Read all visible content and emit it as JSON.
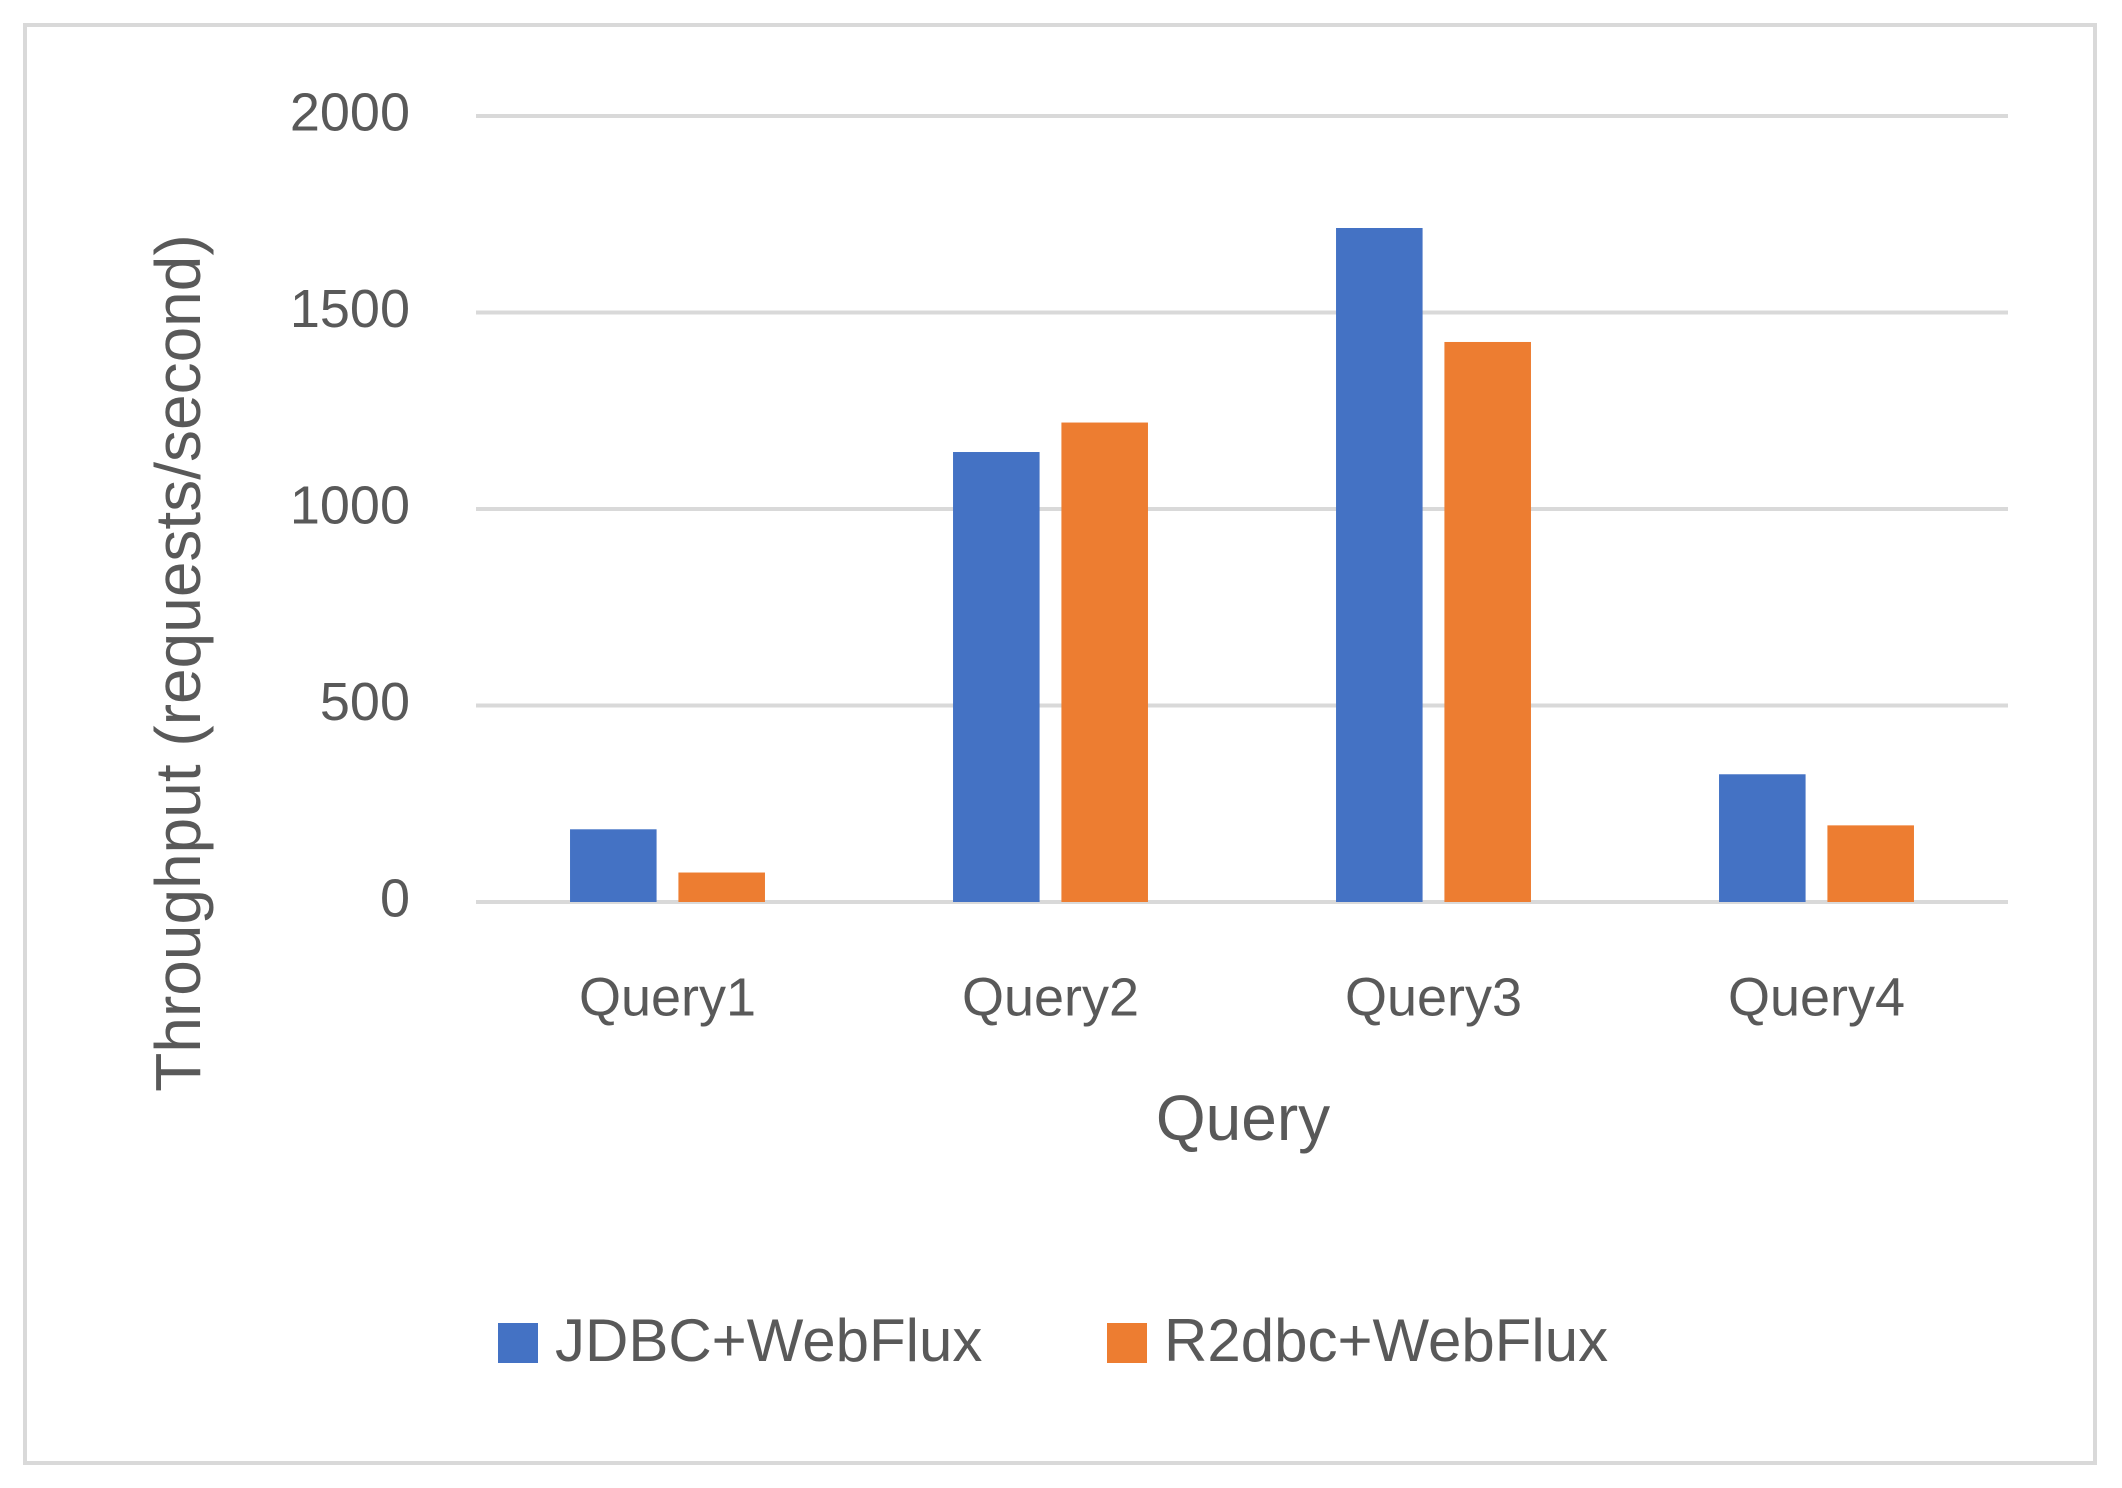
{
  "chart_data": {
    "type": "bar",
    "x_label": "Query",
    "y_label": "Throughput (requests/second)",
    "categories": [
      "Query1",
      "Query2",
      "Query3",
      "Query4"
    ],
    "series": [
      {
        "name": "JDBC+WebFlux",
        "color": "#4472c4",
        "values": [
          185,
          1145,
          1715,
          325
        ]
      },
      {
        "name": "R2dbc+WebFlux",
        "color": "#ed7d31",
        "values": [
          75,
          1220,
          1425,
          195
        ]
      }
    ],
    "ylim": [
      0,
      2000
    ],
    "yticks": [
      0,
      500,
      1000,
      1500,
      2000
    ],
    "grid": true,
    "legend": "bottom"
  }
}
